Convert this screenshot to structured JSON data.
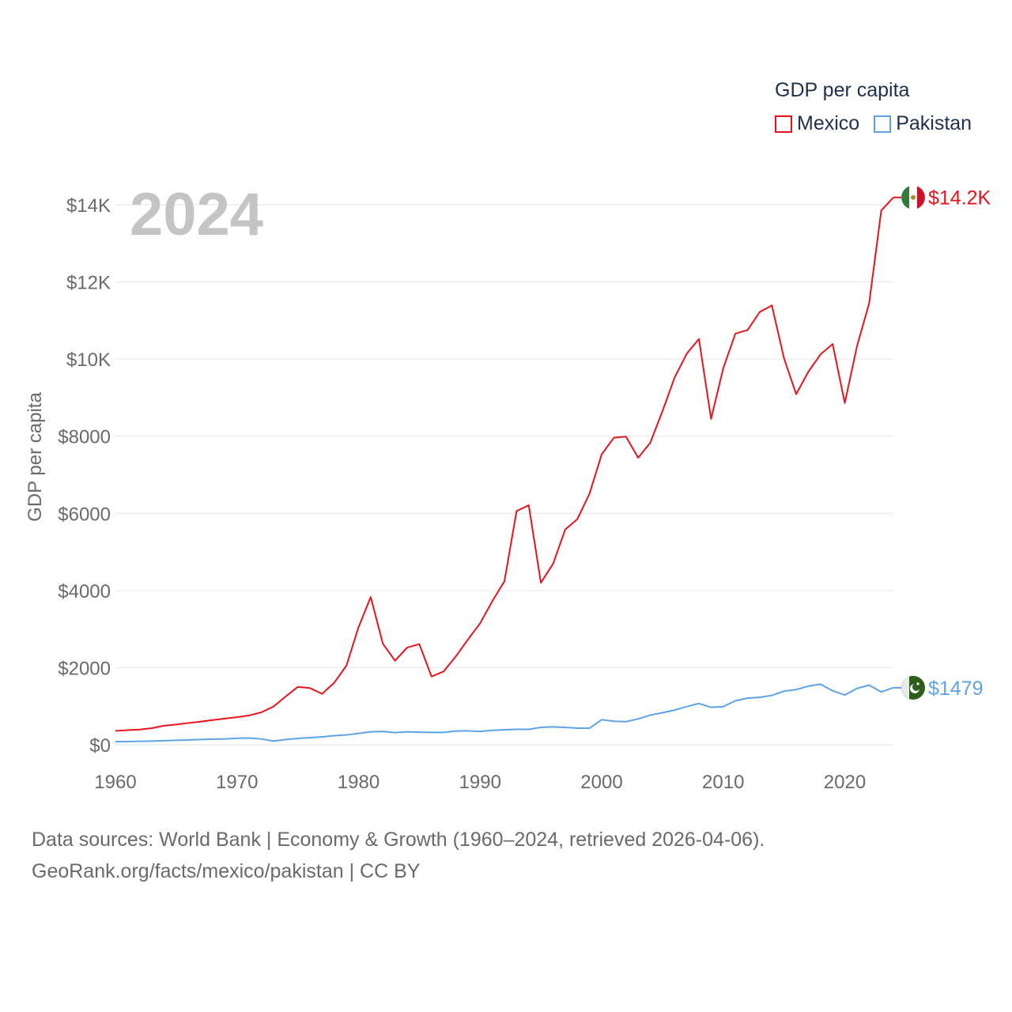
{
  "legend": {
    "title": "GDP per capita",
    "items": [
      {
        "name": "Mexico",
        "color": "#e8141c"
      },
      {
        "name": "Pakistan",
        "color": "#5ea3e6"
      }
    ]
  },
  "year_label": "2024",
  "footer": {
    "line1": "Data sources: World Bank | Economy & Growth (1960–2024, retrieved 2026-04-06).",
    "line2": "GeoRank.org/facts/mexico/pakistan | CC BY"
  },
  "chart_data": {
    "type": "line",
    "title": "GDP per capita",
    "xlabel": "",
    "ylabel": "GDP per capita",
    "xlim": [
      1960,
      2024
    ],
    "ylim": [
      0,
      14000
    ],
    "grid": true,
    "x_ticks": [
      1960,
      1970,
      1980,
      1990,
      2000,
      2010,
      2020
    ],
    "x_tick_labels": [
      "1960",
      "1970",
      "1980",
      "1990",
      "2000",
      "2010",
      "2020"
    ],
    "y_ticks": [
      0,
      2000,
      4000,
      6000,
      8000,
      10000,
      12000,
      14000
    ],
    "y_tick_labels": [
      "$0",
      "$2000",
      "$4000",
      "$6000",
      "$8000",
      "$10K",
      "$12K",
      "$14K"
    ],
    "x": [
      1960,
      1961,
      1962,
      1963,
      1964,
      1965,
      1966,
      1967,
      1968,
      1969,
      1970,
      1971,
      1972,
      1973,
      1974,
      1975,
      1976,
      1977,
      1978,
      1979,
      1980,
      1981,
      1982,
      1983,
      1984,
      1985,
      1986,
      1987,
      1988,
      1989,
      1990,
      1991,
      1992,
      1993,
      1994,
      1995,
      1996,
      1997,
      1998,
      1999,
      2000,
      2001,
      2002,
      2003,
      2004,
      2005,
      2006,
      2007,
      2008,
      2009,
      2010,
      2011,
      2012,
      2013,
      2014,
      2015,
      2016,
      2017,
      2018,
      2019,
      2020,
      2021,
      2022,
      2023,
      2024
    ],
    "series": [
      {
        "name": "Mexico",
        "color": "#e8141c",
        "end_label": "$14.2K",
        "values": [
          360,
          380,
          395,
          430,
          495,
          525,
          565,
          600,
          640,
          680,
          715,
          760,
          840,
          990,
          1250,
          1500,
          1470,
          1320,
          1610,
          2050,
          3050,
          3830,
          2620,
          2180,
          2520,
          2610,
          1770,
          1900,
          2290,
          2730,
          3150,
          3720,
          4240,
          6060,
          6210,
          4200,
          4690,
          5580,
          5850,
          6510,
          7530,
          7960,
          7990,
          7440,
          7830,
          8650,
          9520,
          10140,
          10520,
          8450,
          9760,
          10660,
          10750,
          11220,
          11390,
          10020,
          9090,
          9670,
          10120,
          10390,
          8860,
          10330,
          11440,
          13850,
          14190
        ]
      },
      {
        "name": "Pakistan",
        "color": "#5ea3e6",
        "end_label": "$1479",
        "values": [
          80,
          85,
          90,
          95,
          105,
          115,
          125,
          135,
          145,
          150,
          170,
          175,
          150,
          95,
          135,
          165,
          185,
          205,
          235,
          255,
          295,
          335,
          345,
          315,
          335,
          325,
          320,
          320,
          355,
          360,
          345,
          375,
          390,
          400,
          400,
          450,
          465,
          450,
          430,
          430,
          650,
          610,
          600,
          670,
          770,
          830,
          900,
          990,
          1070,
          970,
          990,
          1140,
          1210,
          1230,
          1280,
          1390,
          1430,
          1520,
          1570,
          1400,
          1290,
          1460,
          1545,
          1370,
          1479
        ]
      }
    ]
  }
}
